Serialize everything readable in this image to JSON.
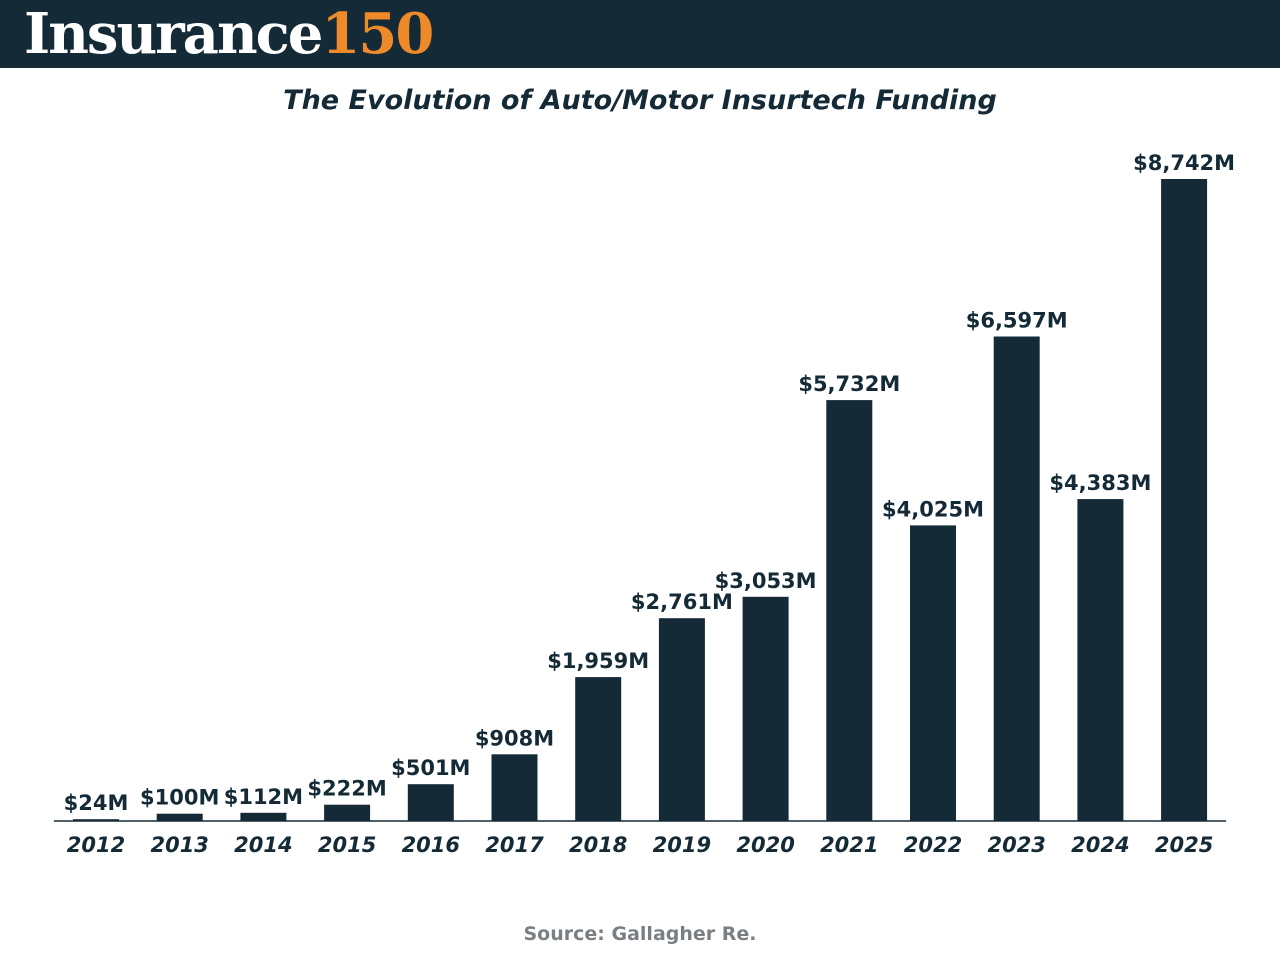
{
  "header": {
    "logo_word": "Insurance",
    "logo_number": "150"
  },
  "colors": {
    "header_bg": "#152a37",
    "bar": "#152a37",
    "logo_accent": "#ee8a2a",
    "source_text": "#7a7f84"
  },
  "chart_data": {
    "type": "bar",
    "title": "The Evolution of Auto/Motor Insurtech Funding",
    "xlabel": "",
    "ylabel": "",
    "categories": [
      "2012",
      "2013",
      "2014",
      "2015",
      "2016",
      "2017",
      "2018",
      "2019",
      "2020",
      "2021",
      "2022",
      "2023",
      "2024",
      "2025"
    ],
    "values": [
      24,
      100,
      112,
      222,
      501,
      908,
      1959,
      2761,
      3053,
      5732,
      4025,
      6597,
      4383,
      8742
    ],
    "value_labels": [
      "$24M",
      "$100M",
      "$112M",
      "$222M",
      "$501M",
      "$908M",
      "$1,959M",
      "$2,761M",
      "$3,053M",
      "$5,732M",
      "$4,025M",
      "$6,597M",
      "$4,383M",
      "$8,742M"
    ],
    "unit": "USD millions",
    "ylim": [
      0,
      8742
    ],
    "grid": false,
    "legend": "none"
  },
  "footer": {
    "source": "Source: Gallagher Re."
  }
}
